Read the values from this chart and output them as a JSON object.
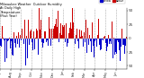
{
  "title": "Milwaukee Weather  Outdoor Humidity\nAt Daily High\nTemperature\n(Past Year)",
  "background_color": "#ffffff",
  "plot_bg_color": "#ffffff",
  "bar_count": 365,
  "ylim": [
    -55,
    55
  ],
  "grid_color": "#aaaaaa",
  "seed": 42,
  "month_ticks": [
    0,
    31,
    59,
    90,
    120,
    151,
    181,
    212,
    243,
    273,
    304,
    334
  ],
  "month_labels": [
    "Jul",
    "Aug",
    "Sep",
    "Oct",
    "Nov",
    "Dec",
    "Jan",
    "Feb",
    "Mar",
    "Apr",
    "May",
    "Jun"
  ],
  "ytick_positions": [
    -50,
    -25,
    0,
    25,
    50
  ],
  "ytick_labels": [
    "50",
    "25",
    "0",
    "25",
    "50"
  ],
  "bar_color_pos": "#cc0000",
  "bar_color_neg": "#0000cc"
}
